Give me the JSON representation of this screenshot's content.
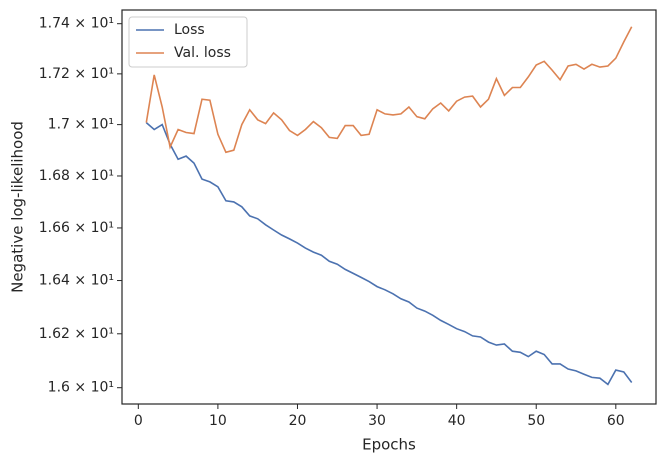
{
  "chart_data": {
    "type": "line",
    "xlabel": "Epochs",
    "ylabel": "Negative log-likelihood",
    "x": [
      1,
      2,
      3,
      4,
      5,
      6,
      7,
      8,
      9,
      10,
      11,
      12,
      13,
      14,
      15,
      16,
      17,
      18,
      19,
      20,
      21,
      22,
      23,
      24,
      25,
      26,
      27,
      28,
      29,
      30,
      31,
      32,
      33,
      34,
      35,
      36,
      37,
      38,
      39,
      40,
      41,
      42,
      43,
      44,
      45,
      46,
      47,
      48,
      49,
      50,
      51,
      52,
      53,
      54,
      55,
      56,
      57,
      58,
      59,
      60,
      61,
      62
    ],
    "series": [
      {
        "name": "Loss",
        "color": "#4c72b0",
        "values": [
          17.008,
          16.981,
          17.0,
          16.923,
          16.865,
          16.877,
          16.85,
          16.788,
          16.777,
          16.758,
          16.704,
          16.7,
          16.681,
          16.646,
          16.635,
          16.612,
          16.592,
          16.573,
          16.558,
          16.542,
          16.523,
          16.508,
          16.496,
          16.473,
          16.462,
          16.442,
          16.427,
          16.412,
          16.396,
          16.377,
          16.365,
          16.35,
          16.331,
          16.319,
          16.296,
          16.285,
          16.269,
          16.25,
          16.235,
          16.219,
          16.208,
          16.192,
          16.188,
          16.169,
          16.158,
          16.162,
          16.135,
          16.131,
          16.115,
          16.135,
          16.123,
          16.088,
          16.088,
          16.069,
          16.062,
          16.05,
          16.038,
          16.035,
          16.012,
          16.065,
          16.058,
          16.019
        ]
      },
      {
        "name": "Val. loss",
        "color": "#dd8452",
        "values": [
          17.008,
          17.196,
          17.069,
          16.912,
          16.981,
          16.969,
          16.965,
          17.1,
          17.096,
          16.962,
          16.892,
          16.9,
          17.0,
          17.058,
          17.019,
          17.004,
          17.046,
          17.019,
          16.977,
          16.958,
          16.981,
          17.012,
          16.988,
          16.95,
          16.946,
          16.996,
          16.996,
          16.958,
          16.962,
          17.058,
          17.042,
          17.038,
          17.042,
          17.069,
          17.031,
          17.023,
          17.062,
          17.085,
          17.054,
          17.092,
          17.108,
          17.112,
          17.069,
          17.1,
          17.181,
          17.115,
          17.146,
          17.146,
          17.188,
          17.235,
          17.25,
          17.215,
          17.177,
          17.231,
          17.238,
          17.219,
          17.238,
          17.227,
          17.231,
          17.262,
          17.327,
          17.388
        ]
      }
    ],
    "xlim": [
      -2.05,
      65.05
    ],
    "xticks": [
      0,
      10,
      20,
      30,
      40,
      50,
      60
    ],
    "ylim": [
      15.94,
      17.455
    ],
    "ylog": true,
    "yticks": [
      {
        "value": 16.0,
        "label": "1.6 × 10¹"
      },
      {
        "value": 16.2,
        "label": "1.62 × 10¹"
      },
      {
        "value": 16.4,
        "label": "1.64 × 10¹"
      },
      {
        "value": 16.6,
        "label": "1.66 × 10¹"
      },
      {
        "value": 16.8,
        "label": "1.68 × 10¹"
      },
      {
        "value": 17.0,
        "label": "1.7 × 10¹"
      },
      {
        "value": 17.2,
        "label": "1.72 × 10¹"
      },
      {
        "value": 17.4,
        "label": "1.74 × 10¹"
      }
    ],
    "legend": "upper left"
  }
}
